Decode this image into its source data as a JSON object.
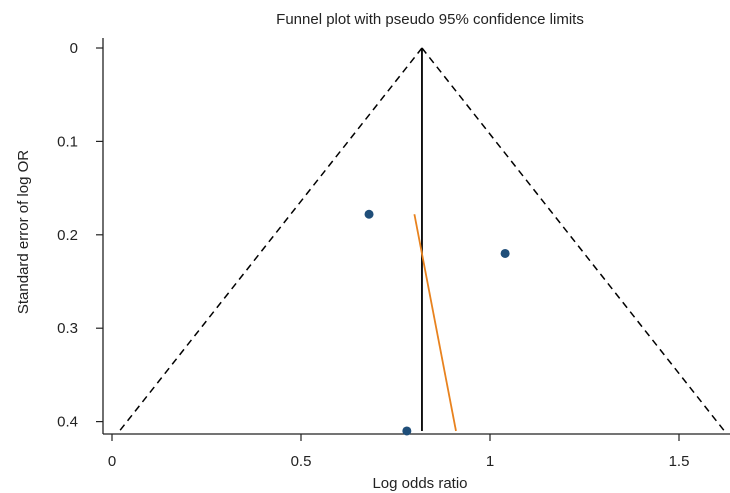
{
  "chart_data": {
    "type": "scatter",
    "title": "Funnel plot with pseudo 95% confidence limits",
    "xlabel": "Log odds ratio",
    "ylabel": "Standard error of log OR",
    "xlim": [
      0,
      1.62
    ],
    "ylim": [
      0,
      0.41
    ],
    "y_reversed": true,
    "x_ticks": [
      0,
      0.5,
      1,
      1.5
    ],
    "x_tick_labels": [
      "0",
      "0.5",
      "1",
      "1.5"
    ],
    "y_ticks": [
      0,
      0.1,
      0.2,
      0.3,
      0.4
    ],
    "y_tick_labels": [
      "0",
      "0.1",
      "0.2",
      "0.3",
      "0.4"
    ],
    "grid": false,
    "points": [
      {
        "x": 0.68,
        "y": 0.178
      },
      {
        "x": 1.04,
        "y": 0.22
      },
      {
        "x": 0.78,
        "y": 0.41
      }
    ],
    "pooled_estimate": 0.82,
    "confidence_limits": {
      "apex": [
        0.82,
        0
      ],
      "lower": [
        0.02,
        0.41
      ],
      "upper": [
        1.62,
        0.41
      ]
    },
    "regression_line": [
      {
        "x": 0.8,
        "y": 0.178
      },
      {
        "x": 0.91,
        "y": 0.41
      }
    ],
    "colors": {
      "points": "#1f4e79",
      "pooled_line": "#000000",
      "confidence_limits": "#000000",
      "regression_line": "#e8821e",
      "axes": "#222222"
    }
  }
}
